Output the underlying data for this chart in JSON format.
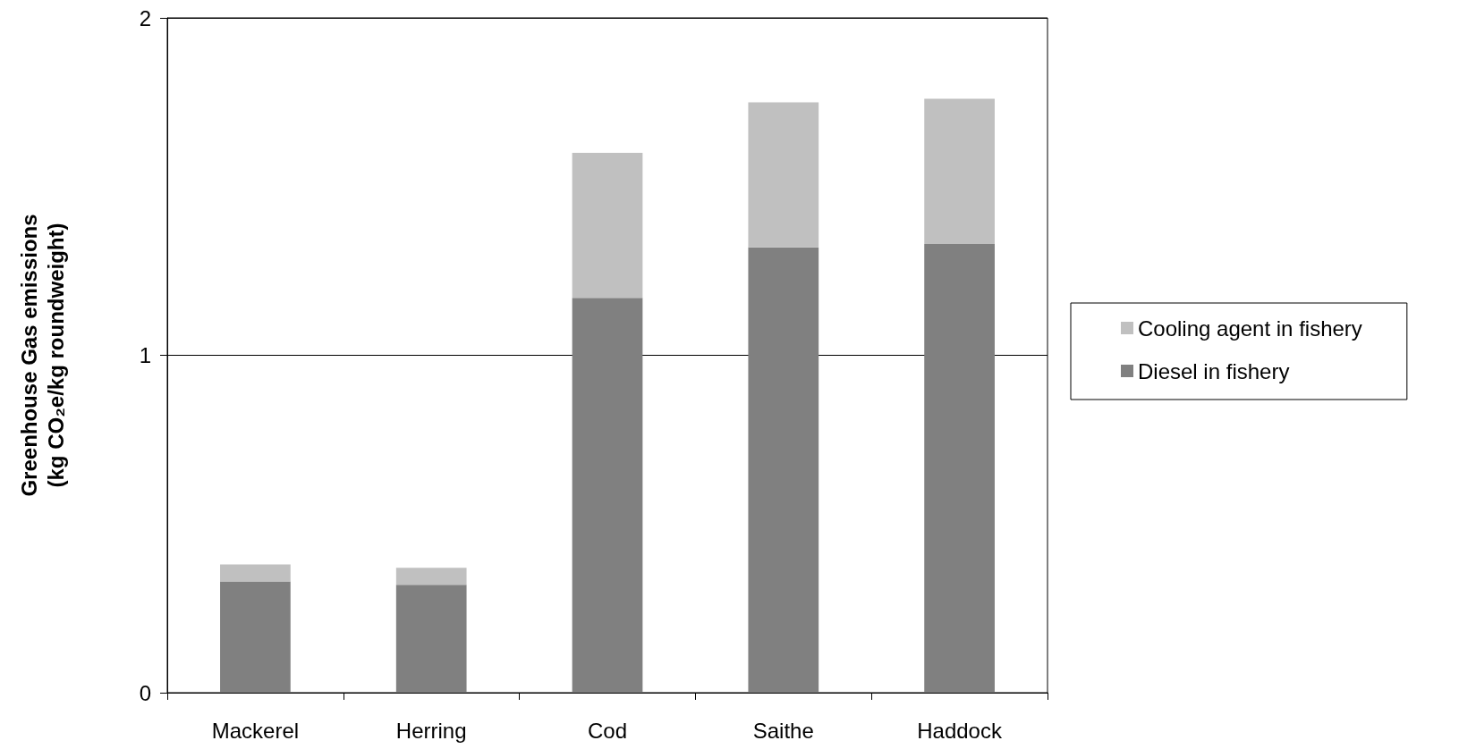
{
  "chart_data": {
    "type": "bar",
    "stacked": true,
    "ylabel": "Greenhouse Gas emissions\n(kg CO₂e/kg roundweight)",
    "categories": [
      "Mackerel",
      "Herring",
      "Cod",
      "Saithe",
      "Haddock"
    ],
    "series": [
      {
        "name": "Diesel in fishery",
        "color": "#808080",
        "values": [
          0.33,
          0.32,
          1.17,
          1.32,
          1.33
        ]
      },
      {
        "name": "Cooling agent in fishery",
        "color": "#c0c0c0",
        "values": [
          0.05,
          0.05,
          0.43,
          0.43,
          0.43
        ]
      }
    ],
    "ylim": [
      0,
      2
    ],
    "yticks": [
      0,
      1,
      2
    ],
    "grid": "y",
    "legend": "right"
  }
}
